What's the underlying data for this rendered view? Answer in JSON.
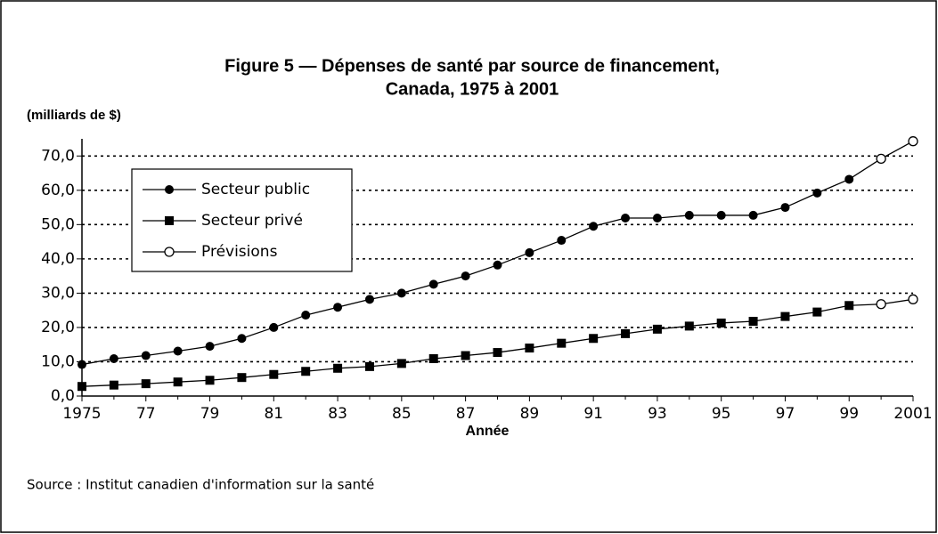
{
  "chart_data": {
    "type": "line",
    "title": "Figure 5 — Dépenses de santé par source de financement,",
    "subtitle": "Canada, 1975 à 2001",
    "y_label": "(milliards de $)",
    "x_label": "Année",
    "source": "Source : Institut canadien d'information sur la santé",
    "x": [
      1975,
      1976,
      1977,
      1978,
      1979,
      1980,
      1981,
      1982,
      1983,
      1984,
      1985,
      1986,
      1987,
      1988,
      1989,
      1990,
      1991,
      1992,
      1993,
      1994,
      1995,
      1996,
      1997,
      1998,
      1999,
      2000,
      2001
    ],
    "series": [
      {
        "name": "Secteur public",
        "marker": "circle",
        "color": "#000000",
        "values": [
          9.2,
          10.9,
          11.8,
          13.1,
          14.5,
          16.8,
          20.0,
          23.6,
          25.9,
          28.2,
          30.0,
          32.6,
          35.0,
          38.2,
          41.8,
          45.4,
          49.5,
          51.9,
          51.9,
          52.7,
          52.7,
          52.7,
          55.0,
          59.2,
          63.2,
          69.2,
          74.3
        ]
      },
      {
        "name": "Secteur privé",
        "marker": "square",
        "color": "#000000",
        "values": [
          2.8,
          3.2,
          3.6,
          4.1,
          4.6,
          5.4,
          6.3,
          7.2,
          8.1,
          8.6,
          9.5,
          10.9,
          11.8,
          12.7,
          14.0,
          15.4,
          16.8,
          18.2,
          19.5,
          20.4,
          21.3,
          21.8,
          23.2,
          24.5,
          26.4,
          26.8,
          28.2
        ]
      }
    ],
    "forecast": {
      "name": "Prévisions",
      "marker": "open-circle",
      "x": [
        2000,
        2001
      ]
    },
    "xlim": [
      1975,
      2001
    ],
    "xticks": [
      1975,
      {
        "value": 1977,
        "label": "77"
      },
      {
        "value": 1979,
        "label": "79"
      },
      {
        "value": 1981,
        "label": "81"
      },
      {
        "value": 1983,
        "label": "83"
      },
      {
        "value": 1985,
        "label": "85"
      },
      {
        "value": 1987,
        "label": "87"
      },
      {
        "value": 1989,
        "label": "89"
      },
      {
        "value": 1991,
        "label": "91"
      },
      {
        "value": 1993,
        "label": "93"
      },
      {
        "value": 1995,
        "label": "95"
      },
      {
        "value": 1997,
        "label": "97"
      },
      {
        "value": 1999,
        "label": "99"
      },
      2001
    ],
    "ylim": [
      0,
      75
    ],
    "yticks": [
      {
        "value": 0,
        "label": "0,0"
      },
      {
        "value": 10,
        "label": "10,0"
      },
      {
        "value": 20,
        "label": "20,0"
      },
      {
        "value": 30,
        "label": "30,0"
      },
      {
        "value": 40,
        "label": "40,0"
      },
      {
        "value": 50,
        "label": "50,0"
      },
      {
        "value": 60,
        "label": "60,0"
      },
      {
        "value": 70,
        "label": "70,0"
      }
    ],
    "grid": true
  }
}
